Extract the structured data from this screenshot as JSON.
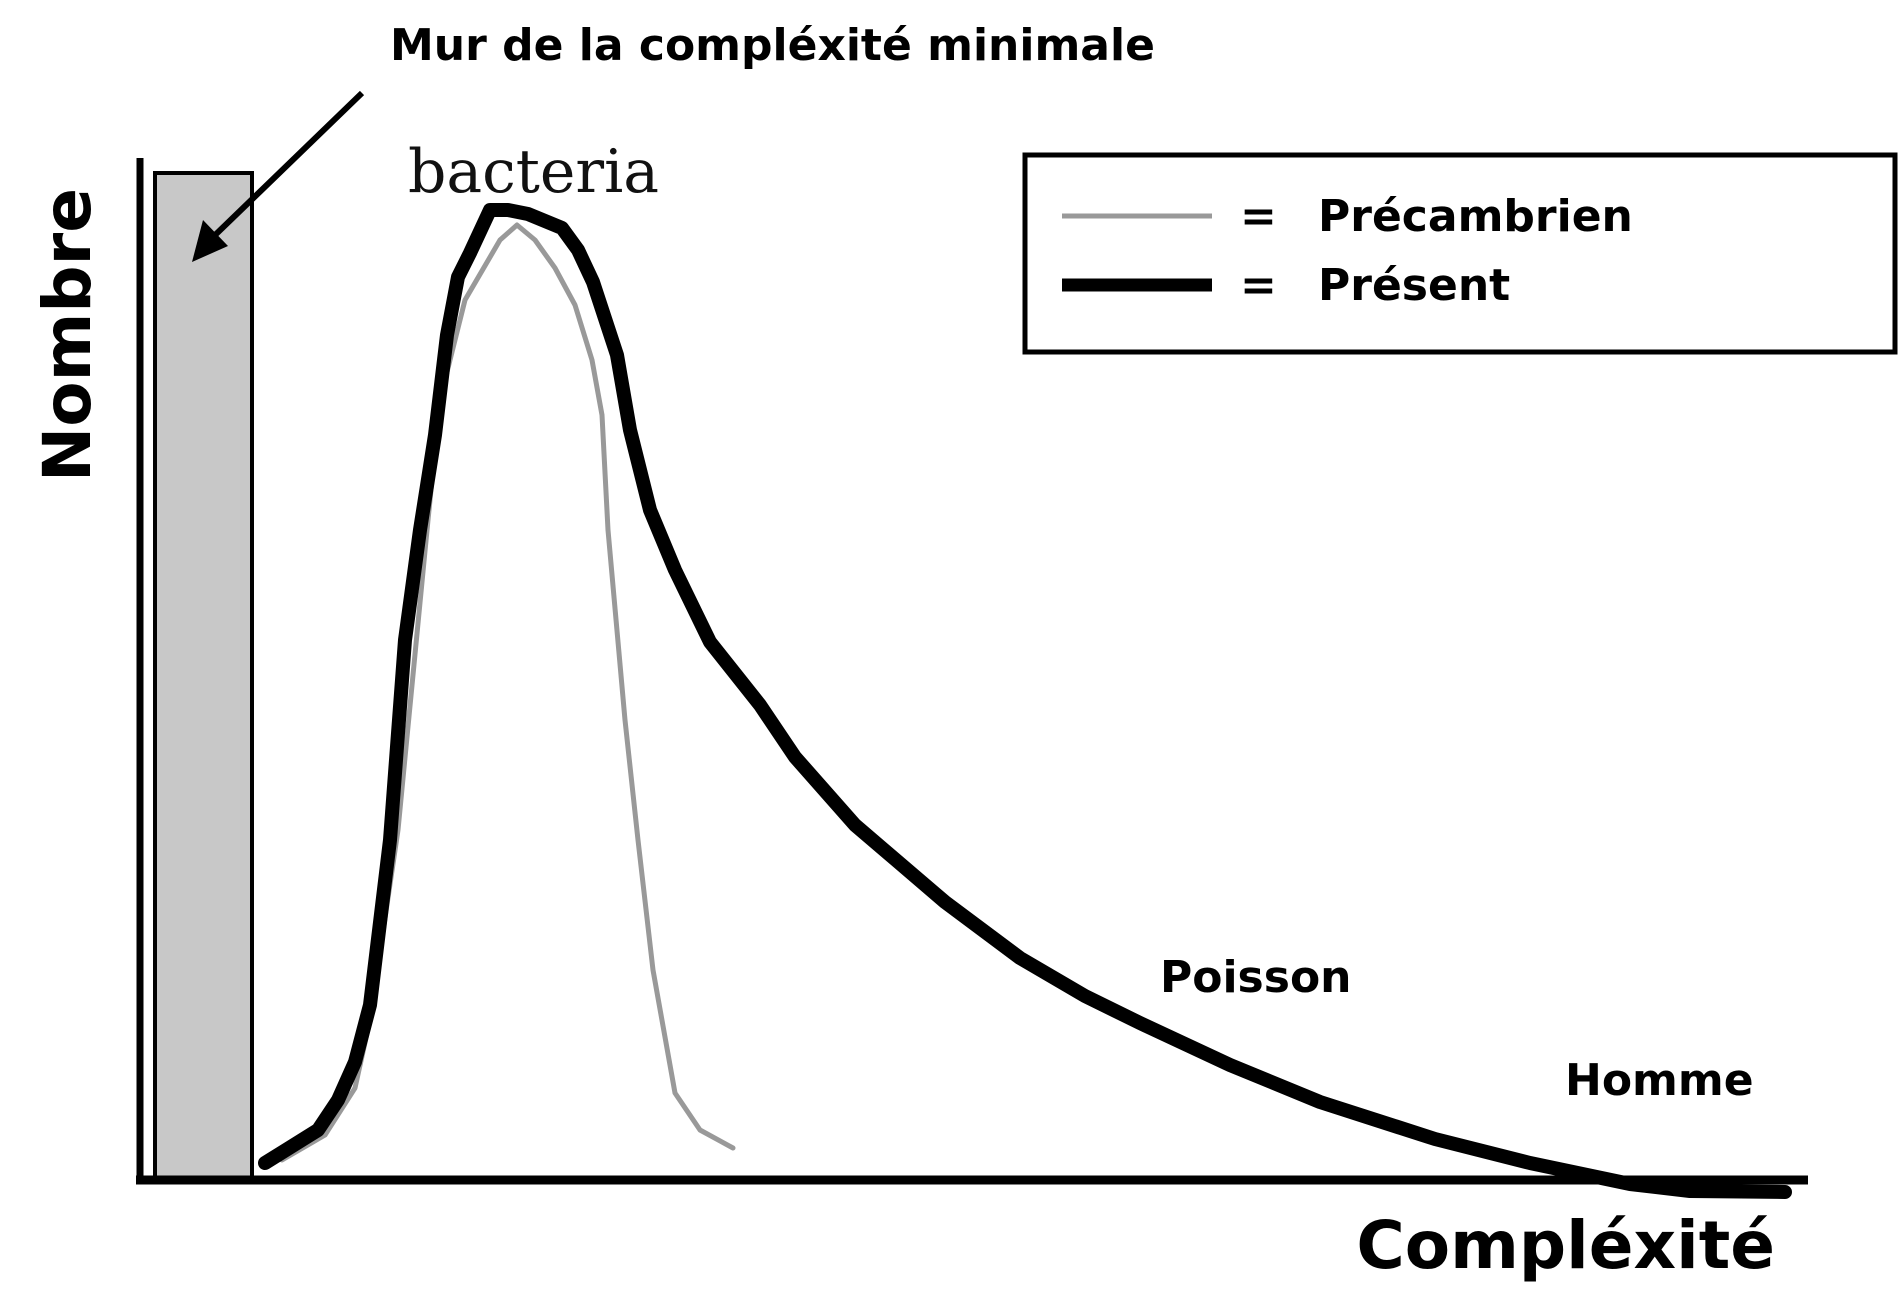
{
  "annotation": {
    "wall_label": "Mur de la compléxité minimale"
  },
  "axes": {
    "y_label": "Nombre",
    "x_label": "Compléxité"
  },
  "curve_labels": {
    "peak": "bacteria",
    "mid": "Poisson",
    "tail": "Homme"
  },
  "legend": {
    "equals": "=",
    "items": [
      {
        "label": "Précambrien",
        "color": "#999999",
        "style": "thin"
      },
      {
        "label": "Présent",
        "color": "#000000",
        "style": "thick"
      }
    ]
  },
  "colors": {
    "wall_fill": "#c8c8c8",
    "axis": "#000000",
    "precambrian_line": "#999999",
    "present_line": "#000000"
  },
  "chart_data": {
    "type": "line",
    "series": [
      {
        "name": "Précambrien"
      },
      {
        "name": "Présent"
      }
    ],
    "xlabel": "Compléxité",
    "ylabel": "Nombre"
  }
}
